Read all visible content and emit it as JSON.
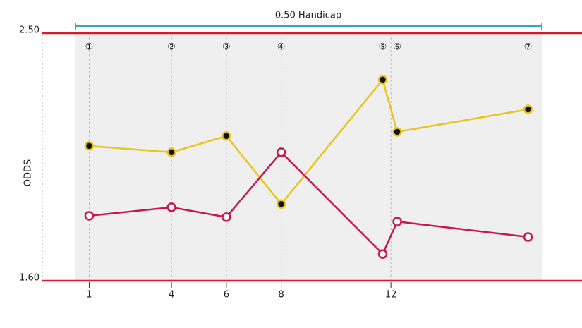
{
  "chart_data": {
    "type": "line",
    "annotation": "0.50 Handicap",
    "y_label": "ODDS",
    "x": [
      1,
      4,
      6,
      8,
      11.7,
      12.23,
      17
    ],
    "point_labels": [
      "①",
      "②",
      "③",
      "④",
      "⑤",
      "⑥",
      "⑦"
    ],
    "series": [
      {
        "color": "#e8c51a",
        "values": [
          2.09,
          2.067,
          2.126,
          1.879,
          2.331,
          2.141,
          2.223
        ]
      },
      {
        "color": "#c8174f",
        "values": [
          1.836,
          1.867,
          1.831,
          2.067,
          1.697,
          1.815,
          1.759
        ]
      }
    ],
    "xlim": [
      0.5,
      17.5
    ],
    "xticks": [
      1,
      4,
      6,
      8,
      12
    ],
    "ylim": [
      1.6,
      2.5
    ],
    "yticks": [
      {
        "value": 1.6,
        "label": "1.60"
      },
      {
        "value": 2.5,
        "label": "2.50"
      }
    ],
    "limit_line_color": "#d9182a",
    "grid": true
  }
}
